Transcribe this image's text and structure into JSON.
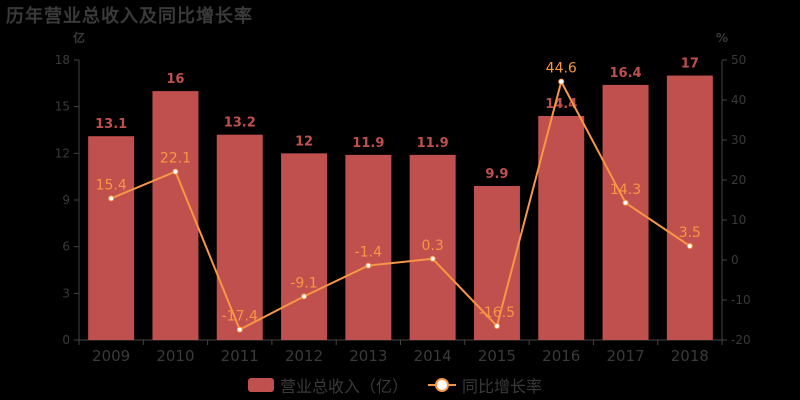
{
  "title": "历年营业总收入及同比增长率",
  "chart_data": {
    "type": "bar+line",
    "title": "历年营业总收入及同比增长率",
    "categories": [
      "2009",
      "2010",
      "2011",
      "2012",
      "2013",
      "2014",
      "2015",
      "2016",
      "2017",
      "2018"
    ],
    "series": [
      {
        "name": "营业总收入（亿）",
        "type": "bar",
        "axis": "left",
        "color": "#c0504d",
        "values": [
          13.1,
          16,
          13.2,
          12,
          11.9,
          11.9,
          9.9,
          14.4,
          16.4,
          17
        ],
        "labels": [
          "13.1",
          "16",
          "13.2",
          "12",
          "11.9",
          "11.9",
          "9.9",
          "14.4",
          "16.4",
          "17"
        ]
      },
      {
        "name": "同比增长率",
        "type": "line",
        "axis": "right",
        "color": "#f79646",
        "values": [
          15.4,
          22.1,
          -17.4,
          -9.1,
          -1.4,
          0.3,
          -16.5,
          44.6,
          14.3,
          3.5
        ],
        "labels": [
          "15.4",
          "22.1",
          "-17.4",
          "-9.1",
          "-1.4",
          "0.3",
          "-16.5",
          "44.6",
          "14.3",
          "3.5"
        ]
      }
    ],
    "left_axis": {
      "unit": "亿",
      "ylim": [
        0,
        18
      ],
      "ticks": [
        "0",
        "3",
        "6",
        "9",
        "12",
        "15",
        "18"
      ]
    },
    "right_axis": {
      "unit": "%",
      "ylim": [
        -20,
        50
      ],
      "ticks": [
        "-20",
        "-10",
        "0",
        "10",
        "20",
        "30",
        "40",
        "50"
      ]
    },
    "grid": false,
    "legend_position": "bottom"
  },
  "legend": {
    "bar_label": "营业总收入（亿）",
    "line_label": "同比增长率"
  }
}
